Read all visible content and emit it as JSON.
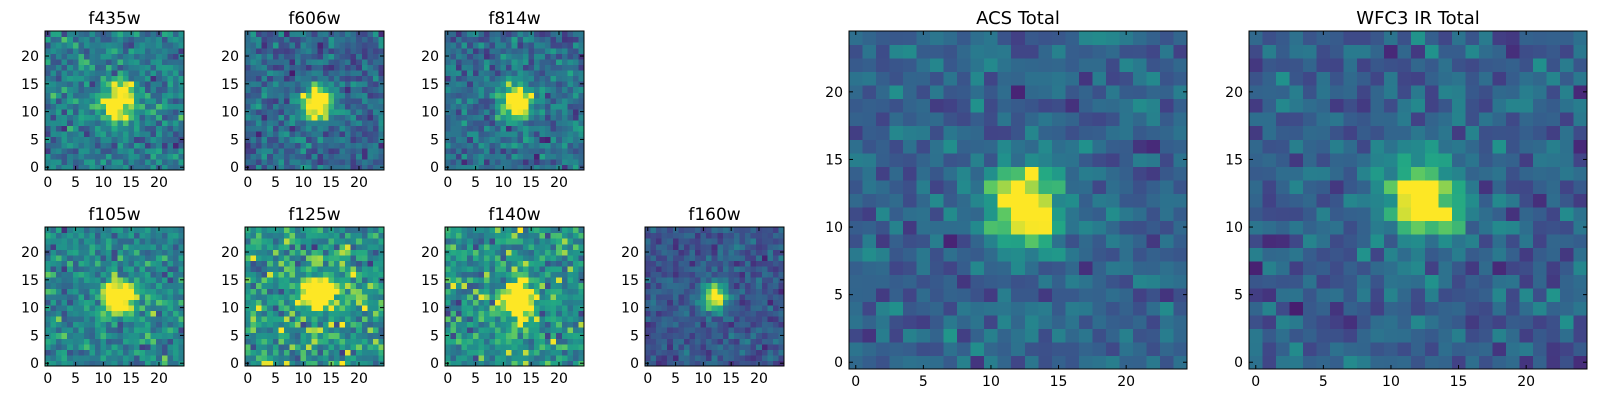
{
  "chart_data": [
    {
      "type": "heatmap",
      "title": "f435w",
      "colormap": "viridis",
      "grid_size": 25,
      "xticks": [
        "0",
        "5",
        "10",
        "15",
        "20"
      ],
      "yticks": [
        "0",
        "5",
        "10",
        "15",
        "20"
      ],
      "blob_center": [
        12.5,
        11.5
      ],
      "blob_shape": [
        2.2,
        2.4
      ],
      "background_level": 0.52,
      "noise_level": 0.17,
      "seed": 11
    },
    {
      "type": "heatmap",
      "title": "f606w",
      "colormap": "viridis",
      "grid_size": 25,
      "xticks": [
        "0",
        "5",
        "10",
        "15",
        "20"
      ],
      "yticks": [
        "0",
        "5",
        "10",
        "15",
        "20"
      ],
      "blob_center": [
        12.5,
        11.5
      ],
      "blob_shape": [
        2.0,
        2.2
      ],
      "background_level": 0.42,
      "noise_level": 0.16,
      "seed": 23
    },
    {
      "type": "heatmap",
      "title": "f814w",
      "colormap": "viridis",
      "grid_size": 25,
      "xticks": [
        "0",
        "5",
        "10",
        "15",
        "20"
      ],
      "yticks": [
        "0",
        "5",
        "10",
        "15",
        "20"
      ],
      "blob_center": [
        12.5,
        12
      ],
      "blob_shape": [
        2.0,
        2.2
      ],
      "background_level": 0.45,
      "noise_level": 0.16,
      "seed": 37
    },
    {
      "type": "heatmap",
      "title": "f105w",
      "colormap": "viridis",
      "grid_size": 25,
      "xticks": [
        "0",
        "5",
        "10",
        "15",
        "20"
      ],
      "yticks": [
        "0",
        "5",
        "10",
        "15",
        "20"
      ],
      "blob_center": [
        13,
        12
      ],
      "blob_shape": [
        2.1,
        2.1
      ],
      "background_level": 0.56,
      "noise_level": 0.18,
      "seed": 41
    },
    {
      "type": "heatmap",
      "title": "f125w",
      "colormap": "viridis",
      "grid_size": 25,
      "xticks": [
        "0",
        "5",
        "10",
        "15",
        "20"
      ],
      "yticks": [
        "0",
        "5",
        "10",
        "15",
        "20"
      ],
      "blob_center": [
        13,
        12.5
      ],
      "blob_shape": [
        2.2,
        1.8
      ],
      "background_level": 0.65,
      "noise_level": 0.2,
      "seed": 53
    },
    {
      "type": "heatmap",
      "title": "f140w",
      "colormap": "viridis",
      "grid_size": 25,
      "xticks": [
        "0",
        "5",
        "10",
        "15",
        "20"
      ],
      "yticks": [
        "0",
        "5",
        "10",
        "15",
        "20"
      ],
      "blob_center": [
        12.5,
        11
      ],
      "blob_shape": [
        2.0,
        2.6
      ],
      "background_level": 0.62,
      "noise_level": 0.2,
      "seed": 67
    },
    {
      "type": "heatmap",
      "title": "f160w",
      "colormap": "viridis",
      "grid_size": 25,
      "xticks": [
        "0",
        "5",
        "10",
        "15",
        "20"
      ],
      "yticks": [
        "0",
        "5",
        "10",
        "15",
        "20"
      ],
      "blob_center": [
        12,
        12
      ],
      "blob_shape": [
        1.6,
        1.7
      ],
      "background_level": 0.34,
      "noise_level": 0.11,
      "seed": 79
    },
    {
      "type": "heatmap",
      "title": "ACS Total",
      "colormap": "viridis",
      "grid_size": 25,
      "xticks": [
        "0",
        "5",
        "10",
        "15",
        "20"
      ],
      "yticks": [
        "0",
        "5",
        "10",
        "15",
        "20"
      ],
      "blob_center": [
        12.5,
        11.5
      ],
      "blob_shape": [
        1.9,
        2.1
      ],
      "background_level": 0.4,
      "noise_level": 0.12,
      "seed": 97
    },
    {
      "type": "heatmap",
      "title": "WFC3 IR Total",
      "colormap": "viridis",
      "grid_size": 25,
      "xticks": [
        "0",
        "5",
        "10",
        "15",
        "20"
      ],
      "yticks": [
        "0",
        "5",
        "10",
        "15",
        "20"
      ],
      "blob_center": [
        12.5,
        12
      ],
      "blob_shape": [
        2.0,
        2.0
      ],
      "background_level": 0.38,
      "noise_level": 0.13,
      "seed": 113
    }
  ]
}
